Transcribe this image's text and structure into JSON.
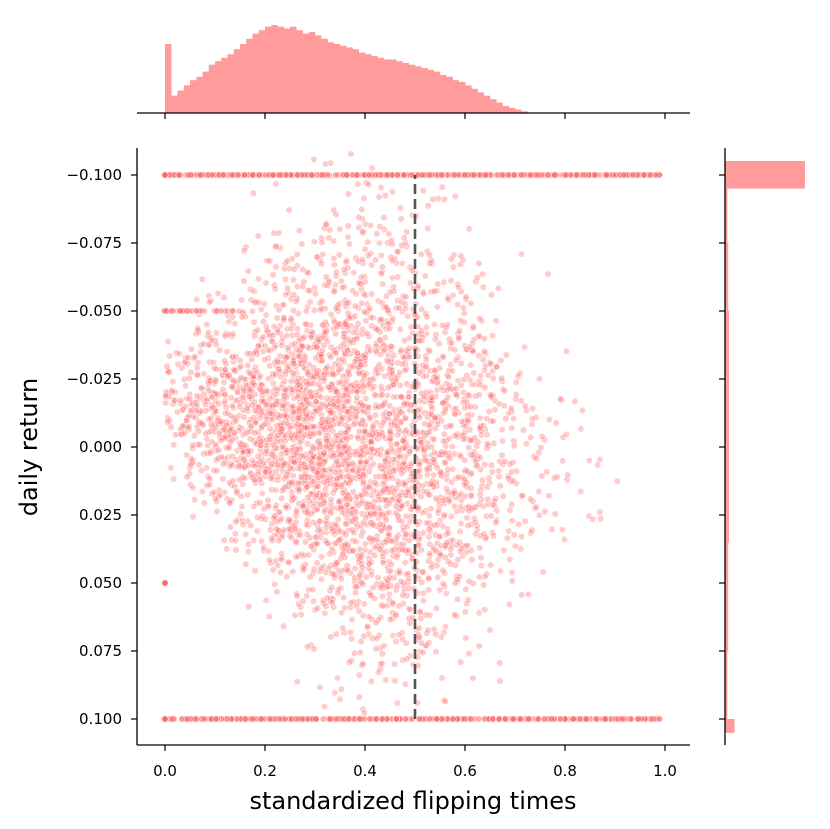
{
  "chart_data": {
    "type": "scatter",
    "title": "",
    "xlabel": "standardized flipping times",
    "ylabel": "daily return",
    "xlim": [
      -0.06,
      1.05
    ],
    "ylim": [
      -0.11,
      0.11
    ],
    "x_ticks": [
      0.0,
      0.2,
      0.4,
      0.6,
      0.8,
      1.0
    ],
    "x_tick_labels": [
      "0.0",
      "0.2",
      "0.4",
      "0.6",
      "0.8",
      "1.0"
    ],
    "y_ticks": [
      0.1,
      0.075,
      0.05,
      0.025,
      0.0,
      -0.025,
      -0.05,
      -0.075,
      -0.1
    ],
    "y_tick_labels": [
      "0.100",
      "0.075",
      "0.050",
      "0.025",
      "0.000",
      "−0.025",
      "−0.050",
      "−0.075",
      "−0.100"
    ],
    "reference_line": {
      "x": 0.5,
      "style": "dashed",
      "color": "#555555"
    },
    "point_color": "#ff6b6b",
    "point_edge_color": "#ffffff",
    "hist_color": "#ff9b9b",
    "grid": false,
    "legend": "none",
    "scatter_summary": {
      "approx_point_count": 12000,
      "x_distribution_peak": 0.3,
      "y_ceiling_cluster": 0.1,
      "y_floor_cluster": -0.1,
      "y_secondary_clusters": [
        0.05,
        -0.05
      ],
      "x_zero_cluster_y_values": [
        0.1,
        0.05,
        -0.05,
        -0.1
      ]
    },
    "marginal_x_histogram": {
      "bin_edges_start": 0.0,
      "bin_width": 0.0125,
      "counts": [
        40,
        10,
        13,
        16,
        19,
        21,
        24,
        28,
        30,
        32,
        34,
        37,
        40,
        43,
        46,
        48,
        50,
        51,
        50,
        49,
        50,
        48,
        46,
        47,
        45,
        43,
        41,
        40,
        39,
        38,
        37,
        35,
        34,
        33,
        32,
        31,
        31,
        30,
        29,
        28,
        27,
        26,
        25,
        24,
        22,
        21,
        19,
        18,
        16,
        14,
        12,
        10,
        8,
        6,
        4,
        3,
        2,
        1
      ]
    },
    "marginal_y_histogram": {
      "bin_edges_start": -0.1,
      "bin_width": 0.005,
      "counts": [
        100,
        3,
        3,
        3,
        3,
        4,
        4,
        4,
        4,
        4,
        5,
        5,
        5,
        5,
        5,
        5,
        5,
        5,
        5,
        5,
        5,
        5,
        5,
        5,
        5,
        5,
        5,
        4,
        4,
        4,
        4,
        4,
        4,
        4,
        4,
        3,
        3,
        3,
        3,
        3,
        12
      ]
    }
  }
}
